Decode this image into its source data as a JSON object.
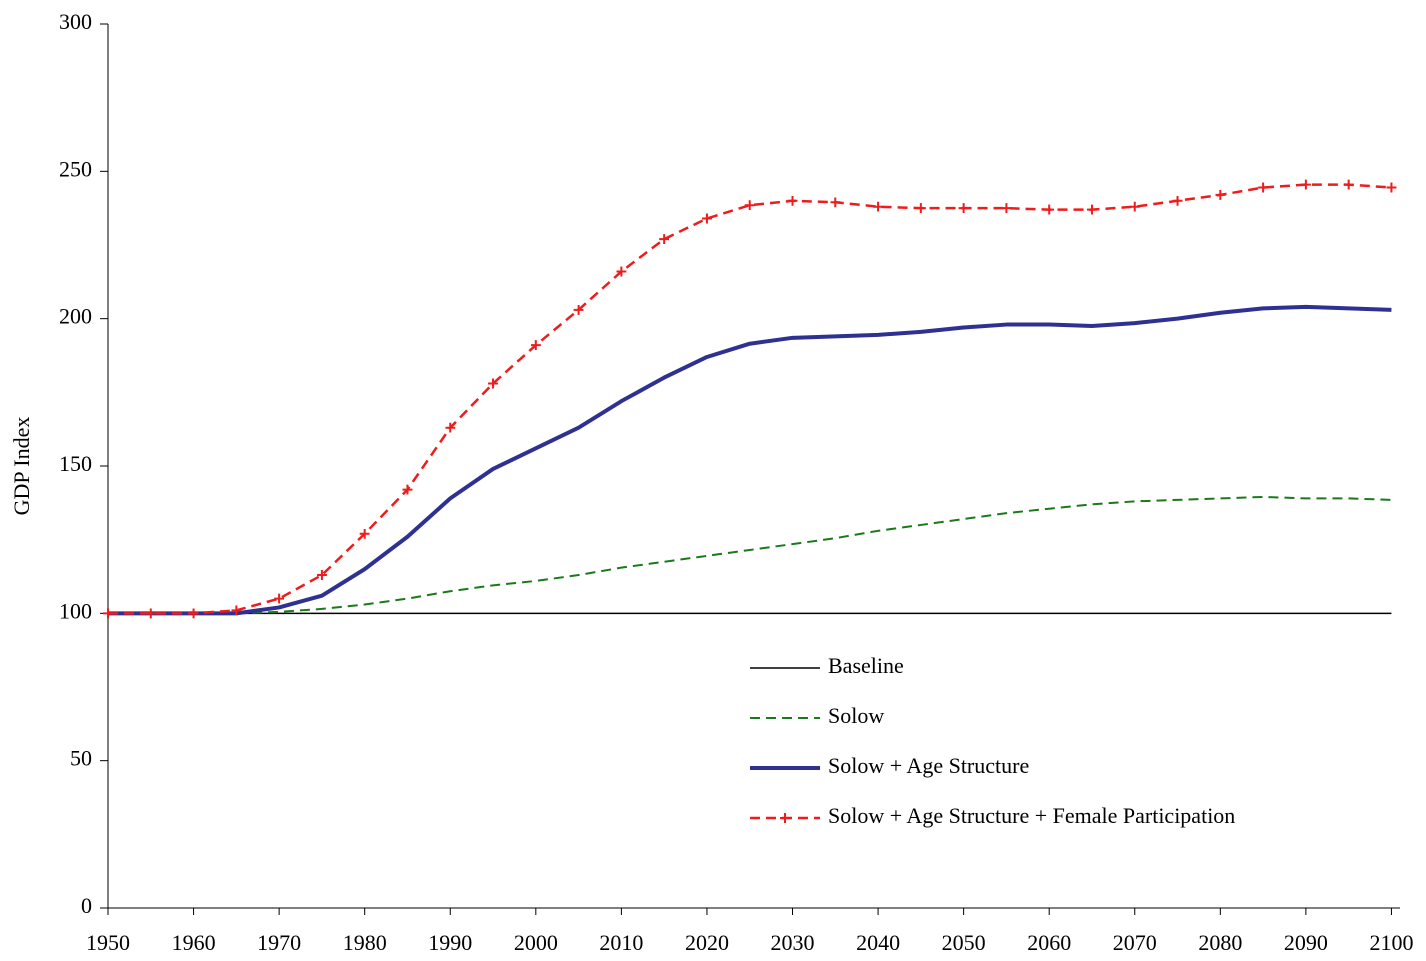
{
  "chart_data": {
    "type": "line",
    "y_label": "GDP Index",
    "x": [
      1950,
      1955,
      1960,
      1965,
      1970,
      1975,
      1980,
      1985,
      1990,
      1995,
      2000,
      2005,
      2010,
      2015,
      2020,
      2025,
      2030,
      2035,
      2040,
      2045,
      2050,
      2055,
      2060,
      2065,
      2070,
      2075,
      2080,
      2085,
      2090,
      2095,
      2100
    ],
    "xlim": [
      1950,
      2101
    ],
    "xticks": [
      1950,
      1960,
      1970,
      1980,
      1990,
      2000,
      2010,
      2020,
      2030,
      2040,
      2050,
      2060,
      2070,
      2080,
      2090,
      2100
    ],
    "ylim": [
      0,
      300
    ],
    "yticks": [
      0,
      50,
      100,
      150,
      200,
      250,
      300
    ],
    "legend": "lower right",
    "series": [
      {
        "name": "Baseline",
        "color": "#000000",
        "width": 1.5,
        "dash": "none",
        "marker": "none",
        "values": [
          100,
          100,
          100,
          100,
          100,
          100,
          100,
          100,
          100,
          100,
          100,
          100,
          100,
          100,
          100,
          100,
          100,
          100,
          100,
          100,
          100,
          100,
          100,
          100,
          100,
          100,
          100,
          100,
          100,
          100,
          100
        ]
      },
      {
        "name": "Solow",
        "color": "#1a7a1a",
        "width": 2,
        "dash": "10,6",
        "marker": "none",
        "values": [
          100,
          100,
          100,
          100,
          100.5,
          101.5,
          103,
          105,
          107.5,
          109.5,
          111,
          113,
          115.5,
          117.5,
          119.5,
          121.5,
          123.5,
          125.5,
          128,
          130,
          132,
          134,
          135.5,
          137,
          138,
          138.5,
          139,
          139.5,
          139,
          139,
          138.5
        ]
      },
      {
        "name": "Solow + Age Structure",
        "color": "#2e3192",
        "width": 4,
        "dash": "none",
        "marker": "none",
        "values": [
          100,
          100,
          100,
          100,
          102,
          106,
          115,
          126,
          139,
          149,
          156,
          163,
          172,
          180,
          187,
          191.5,
          193.5,
          194,
          194.5,
          195.5,
          197,
          198,
          198,
          197.5,
          198.5,
          200,
          202,
          203.5,
          204,
          203.5,
          203
        ]
      },
      {
        "name": "Solow + Age Structure + Female Participation",
        "color": "#ee1c1c",
        "width": 2.5,
        "dash": "10,6",
        "marker": "plus",
        "values": [
          100,
          100,
          100,
          101,
          105,
          113,
          127,
          142,
          163,
          178,
          191,
          203,
          216,
          227,
          234,
          238.5,
          240,
          239.5,
          238,
          237.5,
          237.5,
          237.5,
          237,
          237,
          238,
          240,
          242,
          244.5,
          245.5,
          245.5,
          244.5
        ]
      }
    ]
  }
}
